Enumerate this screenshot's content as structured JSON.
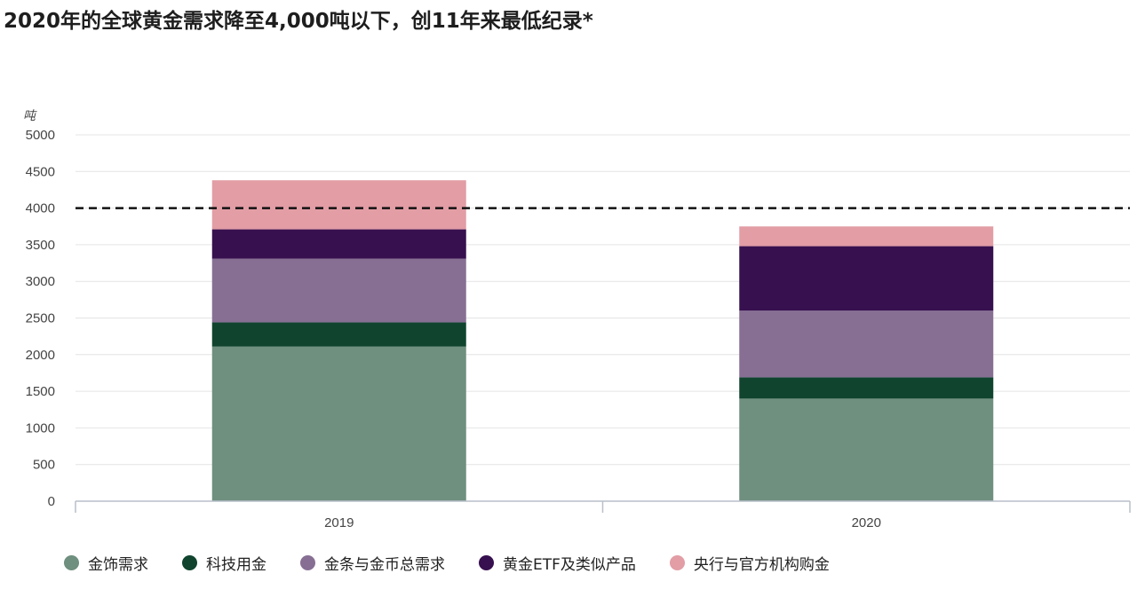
{
  "title": "2020年的全球黄金需求降至4,000吨以下，创11年来最低纪录*",
  "chart_data": {
    "type": "bar",
    "stacked": true,
    "unit_label": "吨",
    "categories": [
      "2019",
      "2020"
    ],
    "ylim": [
      0,
      5000
    ],
    "yticks": [
      0,
      500,
      1000,
      1500,
      2000,
      2500,
      3000,
      3500,
      4000,
      4500,
      5000
    ],
    "reference_line": 4000,
    "grid": true,
    "legend_position": "bottom",
    "series": [
      {
        "name": "金饰需求",
        "color": "#6f8f7f",
        "values": [
          2110,
          1400
        ]
      },
      {
        "name": "科技用金",
        "color": "#10442f",
        "values": [
          330,
          290
        ]
      },
      {
        "name": "金条与金币总需求",
        "color": "#876f94",
        "values": [
          870,
          910
        ]
      },
      {
        "name": "黄金ETF及类似产品",
        "color": "#37104f",
        "values": [
          400,
          880
        ]
      },
      {
        "name": "央行与官方机构购金",
        "color": "#e29da5",
        "values": [
          670,
          270
        ]
      }
    ]
  }
}
